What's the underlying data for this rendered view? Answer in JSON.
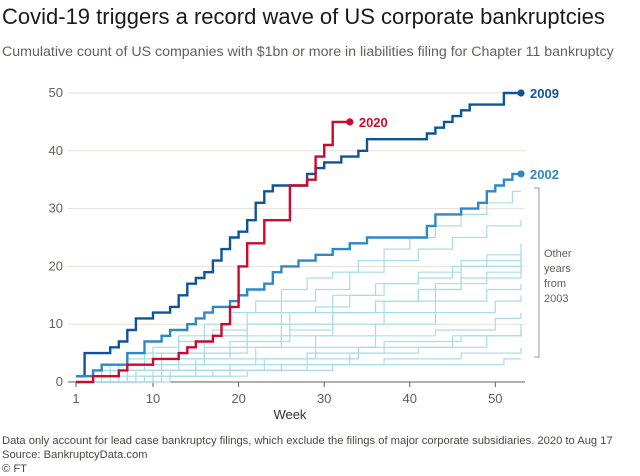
{
  "chart_data": {
    "type": "line",
    "title": "Covid-19 triggers a record wave of US corporate bankruptcies",
    "subtitle": "Cumulative count of US companies with $1bn or more in liabilities filing for Chapter 11 bankruptcy",
    "xlabel": "Week",
    "ylabel": "",
    "xlim": [
      1,
      53
    ],
    "ylim": [
      0,
      50
    ],
    "xticks": [
      1,
      10,
      20,
      30,
      40,
      50
    ],
    "yticks": [
      0,
      10,
      20,
      30,
      40,
      50
    ],
    "grid": "horizontal",
    "series": [
      {
        "name": "2009",
        "label": "2009",
        "color": "#0f5499",
        "highlight": true,
        "x": [
          1,
          2,
          3,
          4,
          5,
          6,
          7,
          8,
          9,
          10,
          11,
          12,
          13,
          14,
          15,
          16,
          17,
          18,
          19,
          20,
          21,
          22,
          23,
          24,
          25,
          26,
          27,
          28,
          29,
          30,
          31,
          32,
          33,
          34,
          35,
          36,
          37,
          38,
          39,
          40,
          41,
          42,
          43,
          44,
          45,
          46,
          47,
          48,
          49,
          50,
          51,
          52,
          53
        ],
        "y": [
          1,
          5,
          5,
          5,
          6,
          7,
          9,
          11,
          11,
          12,
          12,
          13,
          15,
          17,
          18,
          19,
          21,
          23,
          25,
          26,
          28,
          31,
          33,
          34,
          34,
          34,
          34,
          36,
          37,
          38,
          38,
          39,
          39,
          40,
          42,
          42,
          42,
          42,
          42,
          42,
          42,
          43,
          44,
          45,
          46,
          47,
          48,
          48,
          48,
          48,
          50,
          50,
          50
        ]
      },
      {
        "name": "2002",
        "label": "2002",
        "color": "#2e88c6",
        "highlight": true,
        "x": [
          1,
          2,
          3,
          4,
          5,
          6,
          7,
          8,
          9,
          10,
          11,
          12,
          13,
          14,
          15,
          16,
          17,
          18,
          19,
          20,
          21,
          22,
          23,
          24,
          25,
          26,
          27,
          28,
          29,
          30,
          31,
          32,
          33,
          34,
          35,
          36,
          37,
          38,
          39,
          40,
          41,
          42,
          43,
          44,
          45,
          46,
          47,
          48,
          49,
          50,
          51,
          52,
          53
        ],
        "y": [
          1,
          1,
          2,
          3,
          3,
          3,
          5,
          5,
          7,
          7,
          8,
          9,
          9,
          10,
          11,
          12,
          13,
          13,
          14,
          15,
          16,
          16,
          17,
          19,
          20,
          20,
          21,
          21,
          22,
          22,
          23,
          23,
          24,
          24,
          25,
          25,
          25,
          25,
          25,
          25,
          25,
          27,
          29,
          29,
          29,
          30,
          30,
          31,
          33,
          34,
          35,
          36,
          36
        ]
      },
      {
        "name": "2020",
        "label": "2020",
        "color": "#cc0a2e",
        "highlight": true,
        "x": [
          1,
          2,
          3,
          4,
          5,
          6,
          7,
          8,
          9,
          10,
          11,
          12,
          13,
          14,
          15,
          16,
          17,
          18,
          19,
          20,
          21,
          22,
          23,
          24,
          25,
          26,
          27,
          28,
          29,
          30,
          31,
          32,
          33
        ],
        "y": [
          0,
          0,
          1,
          1,
          1,
          2,
          3,
          3,
          3,
          4,
          4,
          4,
          5,
          6,
          7,
          7,
          8,
          10,
          13,
          20,
          24,
          24,
          28,
          28,
          28,
          34,
          34,
          35,
          39,
          41,
          45,
          45,
          45
        ]
      },
      {
        "name": "other-1",
        "color": "#a8dde6",
        "highlight": false,
        "x": [
          1,
          4,
          7,
          10,
          13,
          16,
          19,
          22,
          25,
          28,
          31,
          34,
          37,
          40,
          43,
          46,
          49,
          52,
          53
        ],
        "y": [
          0,
          2,
          4,
          6,
          8,
          10,
          12,
          14,
          16,
          18,
          19,
          21,
          23,
          25,
          27,
          29,
          31,
          33,
          33
        ]
      },
      {
        "name": "other-2",
        "color": "#a8dde6",
        "highlight": false,
        "x": [
          1,
          5,
          9,
          13,
          17,
          21,
          25,
          29,
          33,
          37,
          41,
          45,
          49,
          53
        ],
        "y": [
          0,
          2,
          5,
          7,
          9,
          12,
          14,
          16,
          19,
          21,
          23,
          25,
          27,
          28
        ]
      },
      {
        "name": "other-3",
        "color": "#a8dde6",
        "highlight": false,
        "x": [
          1,
          6,
          11,
          16,
          21,
          26,
          31,
          36,
          41,
          46,
          53
        ],
        "y": [
          0,
          2,
          4,
          6,
          8,
          10,
          12,
          14,
          16,
          18,
          20
        ]
      },
      {
        "name": "other-4",
        "color": "#a8dde6",
        "highlight": false,
        "x": [
          1,
          6,
          11,
          16,
          21,
          26,
          31,
          36,
          41,
          46,
          53
        ],
        "y": [
          0,
          1,
          3,
          5,
          7,
          9,
          12,
          14,
          16,
          20,
          23
        ]
      },
      {
        "name": "other-5",
        "color": "#a8dde6",
        "highlight": false,
        "x": [
          1,
          7,
          13,
          19,
          25,
          31,
          37,
          43,
          49,
          53
        ],
        "y": [
          0,
          2,
          4,
          6,
          8,
          10,
          12,
          14,
          16,
          17
        ]
      },
      {
        "name": "other-6",
        "color": "#a8dde6",
        "highlight": false,
        "x": [
          1,
          8,
          15,
          22,
          29,
          36,
          43,
          50,
          53
        ],
        "y": [
          0,
          2,
          4,
          6,
          8,
          10,
          12,
          14,
          15
        ]
      },
      {
        "name": "other-7",
        "color": "#a8dde6",
        "highlight": false,
        "x": [
          1,
          8,
          15,
          22,
          29,
          36,
          43,
          50,
          53
        ],
        "y": [
          0,
          1,
          3,
          4,
          6,
          8,
          9,
          11,
          12
        ]
      },
      {
        "name": "other-8",
        "color": "#a8dde6",
        "highlight": false,
        "x": [
          1,
          9,
          17,
          25,
          33,
          41,
          49,
          53
        ],
        "y": [
          0,
          1,
          2,
          3,
          5,
          6,
          8,
          9
        ]
      },
      {
        "name": "other-9",
        "color": "#a8dde6",
        "highlight": false,
        "x": [
          1,
          10,
          19,
          28,
          37,
          46,
          53
        ],
        "y": [
          0,
          1,
          2,
          3,
          4,
          5,
          6
        ]
      },
      {
        "name": "other-10",
        "color": "#a8dde6",
        "highlight": false,
        "x": [
          1,
          11,
          21,
          31,
          41,
          51,
          53
        ],
        "y": [
          0,
          1,
          2,
          3,
          3,
          4,
          4
        ]
      },
      {
        "name": "other-11",
        "color": "#a8dde6",
        "highlight": false,
        "x": [
          1,
          5,
          9,
          13,
          17,
          21,
          25,
          29,
          33,
          37,
          41,
          45,
          49,
          53
        ],
        "y": [
          1,
          3,
          5,
          7,
          8,
          10,
          12,
          13,
          15,
          17,
          18,
          20,
          22,
          22
        ]
      },
      {
        "name": "other-12",
        "color": "#a8dde6",
        "highlight": false,
        "x": [
          1,
          6,
          11,
          16,
          21,
          26,
          31,
          36,
          41,
          46,
          53
        ],
        "y": [
          0,
          3,
          5,
          8,
          10,
          12,
          15,
          17,
          19,
          21,
          24
        ]
      },
      {
        "name": "other-13",
        "color": "#a8dde6",
        "highlight": false,
        "x": [
          1,
          7,
          13,
          19,
          25,
          31,
          37,
          43,
          49,
          53
        ],
        "y": [
          0,
          3,
          5,
          7,
          10,
          12,
          14,
          17,
          19,
          21
        ]
      },
      {
        "name": "other-14",
        "color": "#a8dde6",
        "highlight": false,
        "x": [
          1,
          10,
          19,
          28,
          37,
          46,
          53
        ],
        "y": [
          0,
          2,
          3,
          5,
          7,
          8,
          10
        ]
      },
      {
        "name": "other-15",
        "color": "#a8dde6",
        "highlight": false,
        "x": [
          1,
          12,
          23,
          34,
          45,
          53
        ],
        "y": [
          0,
          2,
          4,
          6,
          8,
          9
        ]
      }
    ],
    "bracket_note": [
      "Other",
      "years",
      "from",
      "2003"
    ]
  },
  "footnote": {
    "line1": "Data only account for lead case bankruptcy filings, which exclude the filings of major corporate subsidiaries. 2020 to Aug 17",
    "line2": "Source: BankruptcyData.com",
    "line3": "© FT"
  }
}
